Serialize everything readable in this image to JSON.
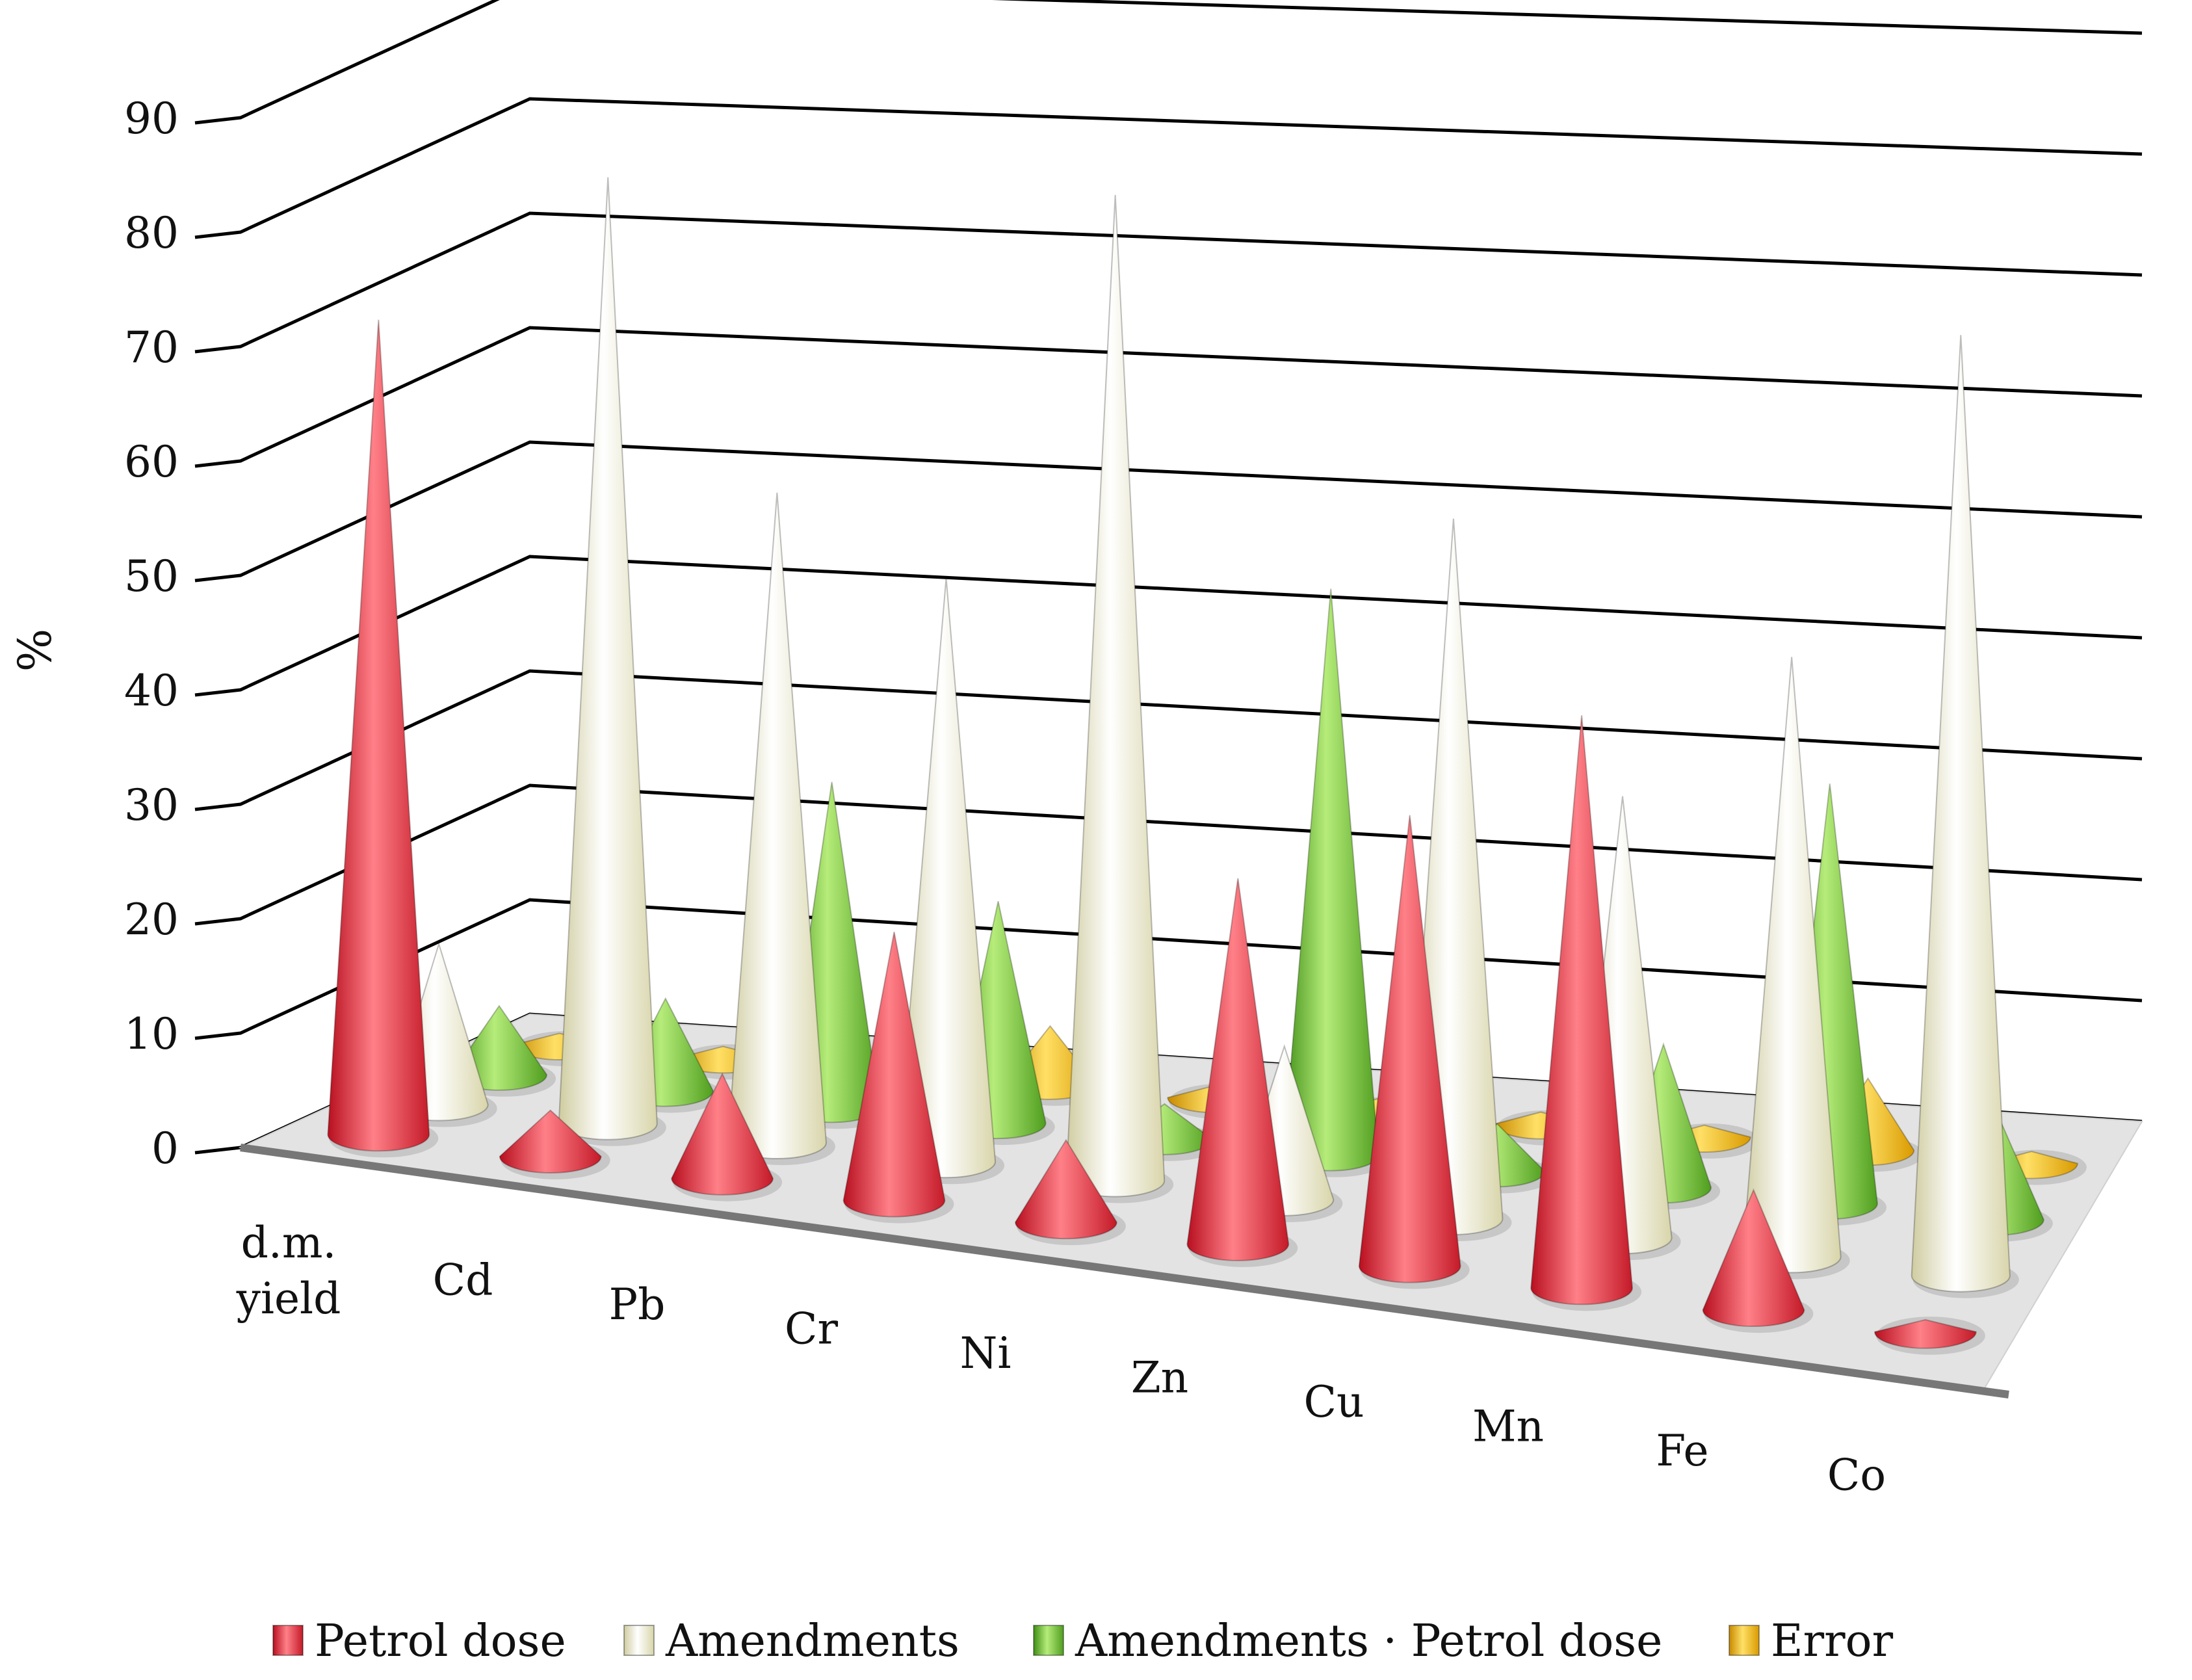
{
  "chart_data": {
    "type": "bar",
    "style": "3d-cone",
    "title": "",
    "xlabel": "",
    "ylabel": "%",
    "ylim": [
      0,
      90
    ],
    "yticks": [
      "0",
      "10",
      "20",
      "30",
      "40",
      "50",
      "60",
      "70",
      "80",
      "90"
    ],
    "categories": [
      [
        "d.m.",
        "yield"
      ],
      [
        "Cd"
      ],
      [
        "Pb"
      ],
      [
        "Cr"
      ],
      [
        "Ni"
      ],
      [
        "Zn"
      ],
      [
        "Cu"
      ],
      [
        "Mn"
      ],
      [
        "Fe"
      ],
      [
        "Co"
      ]
    ],
    "series": [
      {
        "name": "Petrol dose",
        "color": "#e8323c",
        "values": [
          71,
          4,
          9,
          23,
          7,
          31,
          38,
          48,
          10,
          1
        ]
      },
      {
        "name": "Amendments",
        "color": "#f3f1d2",
        "values": [
          14,
          82,
          56,
          50,
          84,
          13,
          59,
          37,
          50,
          78
        ]
      },
      {
        "name": "Amendments · Petrol dose",
        "color": "#7cc242",
        "values": [
          6,
          8,
          28,
          19,
          3,
          48,
          4,
          12,
          35,
          9
        ]
      },
      {
        "name": "Error",
        "color": "#f5b80c",
        "values": [
          1,
          1,
          1,
          5,
          1,
          1,
          1,
          1,
          6,
          1
        ]
      }
    ],
    "legend_position": "bottom"
  }
}
